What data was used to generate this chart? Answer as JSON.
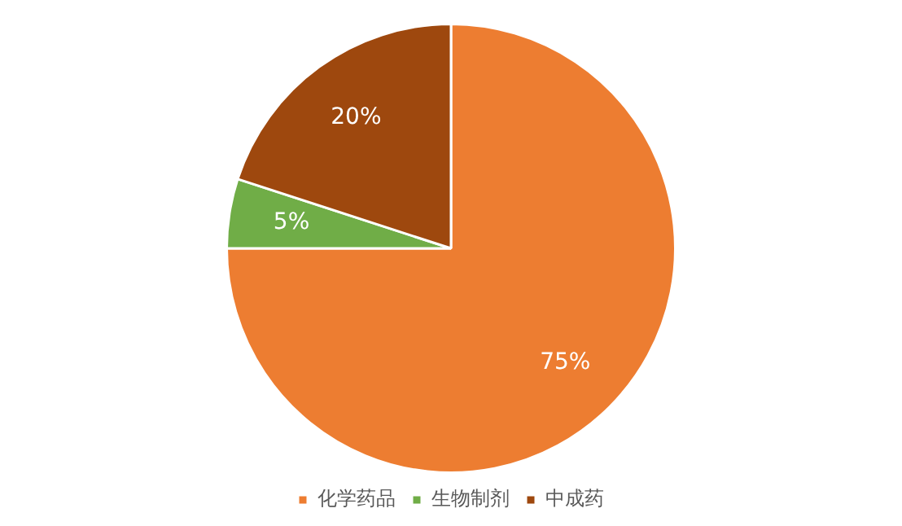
{
  "chart_data": {
    "type": "pie",
    "categories": [
      "化学药品",
      "生物制剂",
      "中成药"
    ],
    "values": [
      75,
      5,
      20
    ],
    "colors": [
      "#ed7d31",
      "#70ad47",
      "#9e480e"
    ],
    "value_labels": [
      "75%",
      "5%",
      "20%"
    ],
    "legend": "bottom"
  }
}
